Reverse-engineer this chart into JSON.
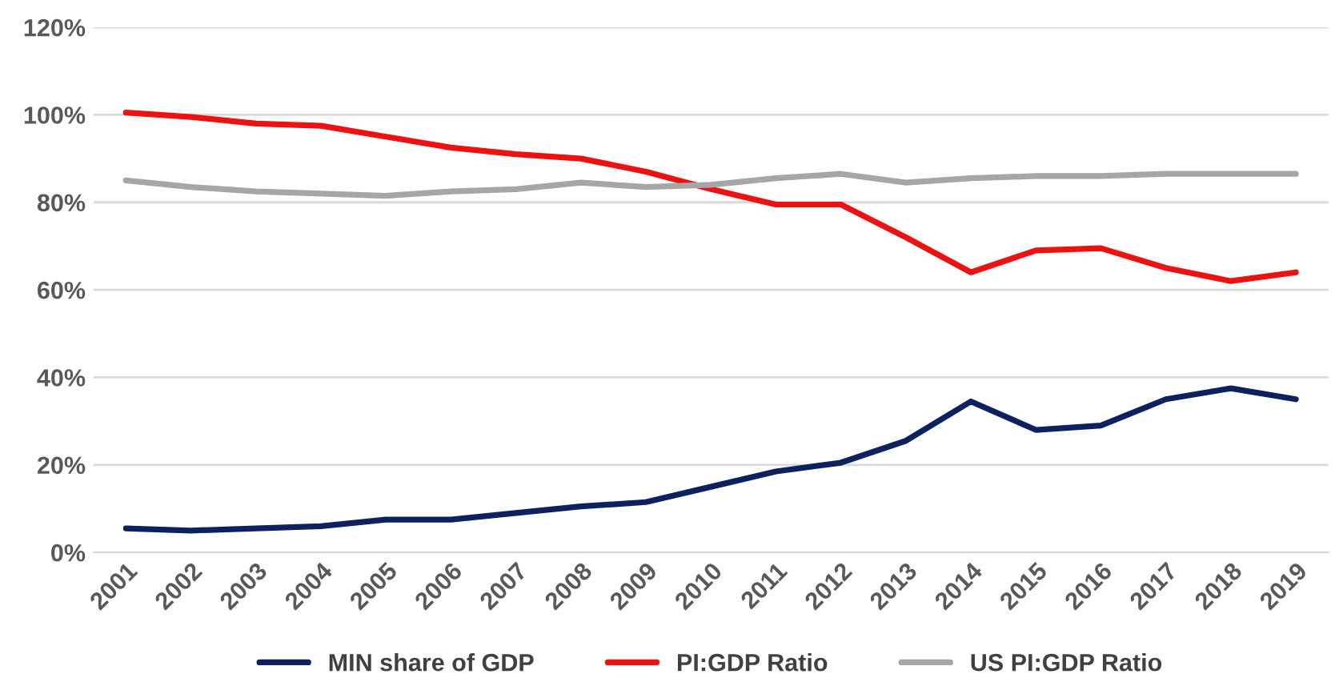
{
  "chart_data": {
    "type": "line",
    "categories": [
      "2001",
      "2002",
      "2003",
      "2004",
      "2005",
      "2006",
      "2007",
      "2008",
      "2009",
      "2010",
      "2011",
      "2012",
      "2013",
      "2014",
      "2015",
      "2016",
      "2017",
      "2018",
      "2019"
    ],
    "series": [
      {
        "name": "MIN share of GDP",
        "color": "#0d2160",
        "values": [
          5.5,
          5,
          5.5,
          6,
          7.5,
          7.5,
          9,
          10.5,
          11.5,
          15,
          18.5,
          20.5,
          25.5,
          34.5,
          28,
          29,
          35,
          37.5,
          35
        ]
      },
      {
        "name": "PI:GDP Ratio",
        "color": "#ee1111",
        "values": [
          100.5,
          99.5,
          98,
          97.5,
          95,
          92.5,
          91,
          90,
          87,
          83,
          79.5,
          79.5,
          72,
          64,
          69,
          69.5,
          65,
          62,
          64
        ]
      },
      {
        "name": "US PI:GDP Ratio",
        "color": "#a6a6a6",
        "values": [
          85,
          83.5,
          82.5,
          82,
          81.5,
          82.5,
          83,
          84.5,
          83.5,
          84,
          85.5,
          86.5,
          84.5,
          85.5,
          86,
          86,
          86.5,
          86.5,
          86.5
        ]
      }
    ],
    "ylim": [
      0,
      120
    ],
    "yticks": [
      {
        "value": 0,
        "label": "0%"
      },
      {
        "value": 20,
        "label": "20%"
      },
      {
        "value": 40,
        "label": "40%"
      },
      {
        "value": 60,
        "label": "60%"
      },
      {
        "value": 80,
        "label": "80%"
      },
      {
        "value": 100,
        "label": "100%"
      },
      {
        "value": 120,
        "label": "120%"
      }
    ],
    "grid": "y",
    "legend": "bottom",
    "marker": "none",
    "line_style": "solid"
  }
}
